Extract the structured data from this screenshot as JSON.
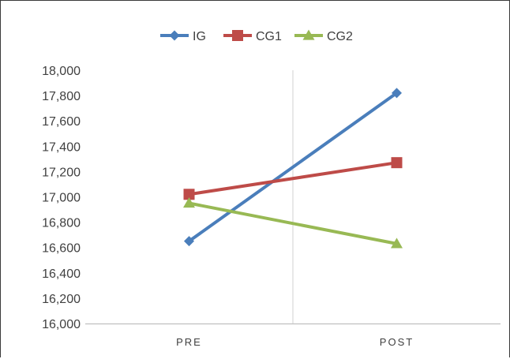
{
  "chart_data": {
    "type": "line",
    "categories": [
      "PRE",
      "POST"
    ],
    "series": [
      {
        "name": "IG",
        "values": [
          16650,
          17820
        ],
        "color": "#4a7ebb",
        "marker": "diamond"
      },
      {
        "name": "CG1",
        "values": [
          17020,
          17270
        ],
        "color": "#be4b48",
        "marker": "square"
      },
      {
        "name": "CG2",
        "values": [
          16950,
          16630
        ],
        "color": "#98b954",
        "marker": "triangle"
      }
    ],
    "yticks": [
      "16,000",
      "16,200",
      "16,400",
      "16,600",
      "16,800",
      "17,000",
      "17,200",
      "17,400",
      "17,600",
      "17,800",
      "18,000"
    ],
    "ylim": [
      16000,
      18000
    ],
    "legend_position": "top",
    "axis_color": "#bfbfbf",
    "text_color": "#404040"
  }
}
